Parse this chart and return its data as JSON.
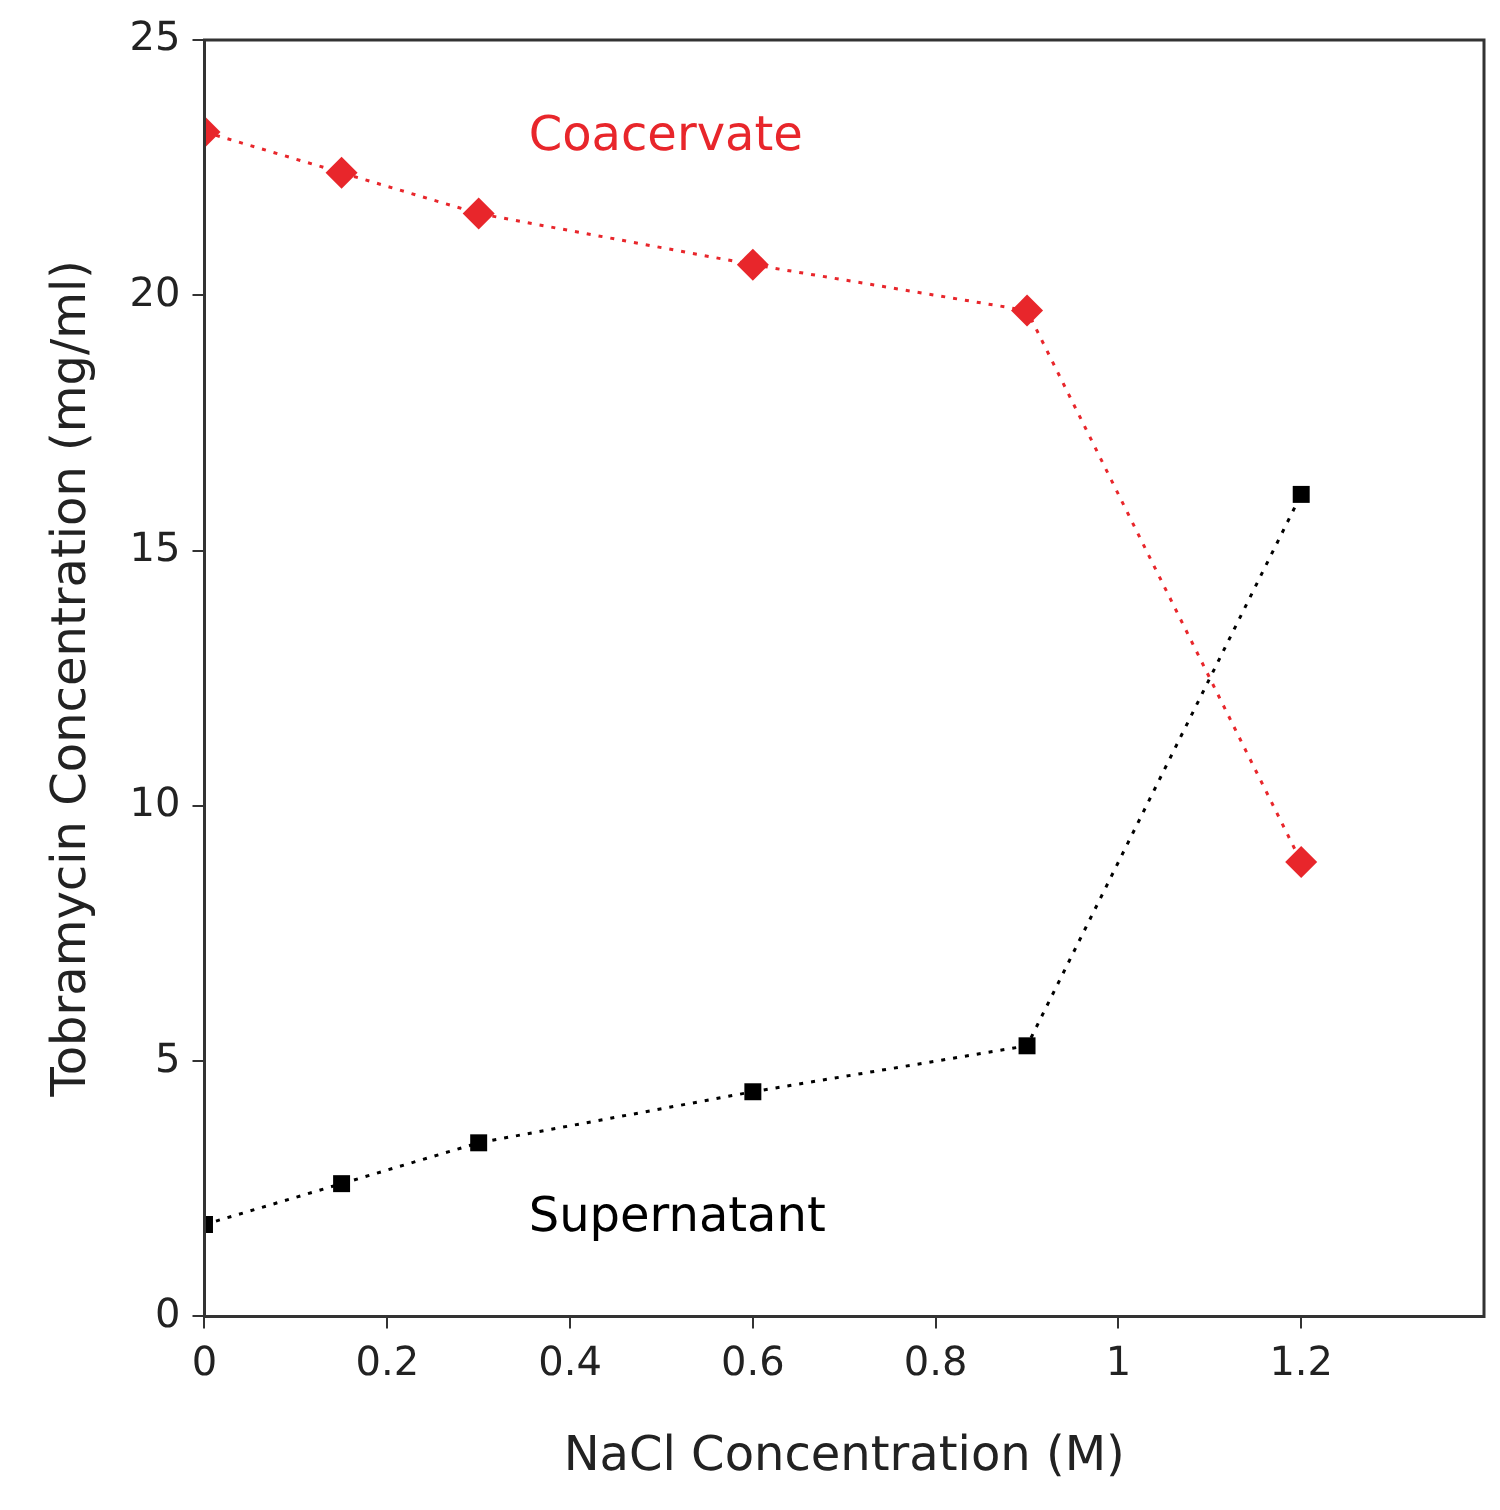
{
  "chart_data": {
    "type": "line",
    "xlabel": "NaCl Concentration (M)",
    "ylabel": "Tobramycin Concentration (mg/ml)",
    "xlim": [
      0,
      1.4
    ],
    "xticks": [
      0,
      0.2,
      0.4,
      0.6,
      0.8,
      1,
      1.2
    ],
    "ylim": [
      0,
      25
    ],
    "yticks": [
      0,
      5,
      10,
      15,
      20,
      25
    ],
    "grid": false,
    "legend": false,
    "line_style": "dotted",
    "series": [
      {
        "name": "Coacervate",
        "color": "#e8262b",
        "marker": "diamond",
        "x": [
          0,
          0.15,
          0.3,
          0.6,
          0.9,
          1.2
        ],
        "values": [
          23.2,
          22.4,
          21.6,
          20.6,
          19.7,
          8.9
        ]
      },
      {
        "name": "Supernatant",
        "color": "#000000",
        "marker": "square",
        "x": [
          0,
          0.15,
          0.3,
          0.6,
          0.9,
          1.2
        ],
        "values": [
          1.8,
          2.6,
          3.4,
          4.4,
          5.3,
          16.1
        ]
      }
    ]
  }
}
